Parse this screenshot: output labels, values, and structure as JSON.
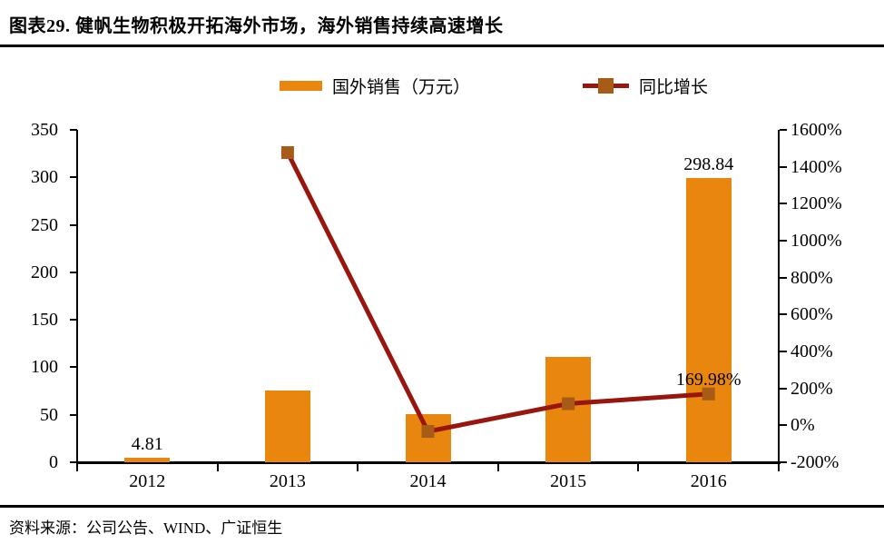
{
  "header": {
    "title": "图表29. 健帆生物积极开拓海外市场，海外销售持续高速增长"
  },
  "footer": {
    "source": "资料来源：公司公告、WIND、广证恒生"
  },
  "legend": {
    "bar_label": "国外销售（万元）",
    "line_label": "同比增长"
  },
  "colors": {
    "bar": "#E8860E",
    "line": "#99160F",
    "marker": "#A65C16",
    "axis": "#000000"
  },
  "chart_data": {
    "type": "bar",
    "subtype": "combo-bar-line-dual-axis",
    "categories": [
      "2012",
      "2013",
      "2014",
      "2015",
      "2016"
    ],
    "series": [
      {
        "name": "国外销售（万元）",
        "type": "bar",
        "axis": "left",
        "values": [
          4.81,
          76,
          51,
          110.7,
          298.84
        ]
      },
      {
        "name": "同比增长",
        "type": "line",
        "axis": "right",
        "unit": "%",
        "values": [
          null,
          1477,
          -33,
          117,
          169.98
        ]
      }
    ],
    "left_axis": {
      "min": 0,
      "max": 350,
      "step": 50,
      "tick_labels": [
        "350",
        "300",
        "250",
        "200",
        "150",
        "100",
        "50",
        "0"
      ]
    },
    "right_axis": {
      "min": -200,
      "max": 1600,
      "step": 200,
      "tick_labels": [
        "1600%",
        "1400%",
        "1200%",
        "1000%",
        "800%",
        "600%",
        "400%",
        "200%",
        "0%",
        "-200%"
      ]
    },
    "annotations": [
      {
        "target": "bar",
        "index": 0,
        "text": "4.81"
      },
      {
        "target": "bar",
        "index": 4,
        "text": "298.84"
      },
      {
        "target": "line",
        "index": 4,
        "text": "169.98%"
      }
    ],
    "grid": false,
    "legend_position": "top"
  }
}
